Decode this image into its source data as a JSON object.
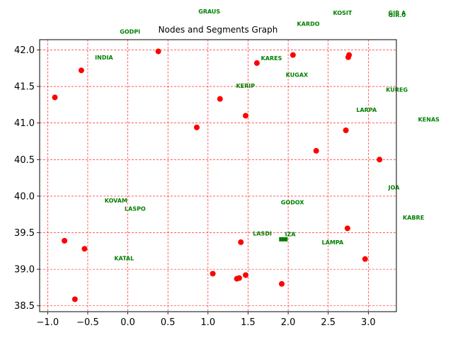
{
  "chart_data": {
    "type": "scatter",
    "title": "Nodes and Segments Graph",
    "xlabel": "",
    "ylabel": "",
    "xlim": [
      -1.1,
      3.35
    ],
    "ylim": [
      38.42,
      42.14
    ],
    "xticks": [
      -1.0,
      -0.5,
      0.0,
      0.5,
      1.0,
      1.5,
      2.0,
      2.5,
      3.0
    ],
    "yticks": [
      38.5,
      39.0,
      39.5,
      40.0,
      40.5,
      41.0,
      41.5,
      42.0
    ],
    "xtick_labels": [
      "−1.0",
      "−0.5",
      "0.0",
      "0.5",
      "1.0",
      "1.5",
      "2.0",
      "2.5",
      "3.0"
    ],
    "ytick_labels": [
      "38.5",
      "39.0",
      "39.5",
      "40.0",
      "40.5",
      "41.0",
      "41.5",
      "42.0"
    ],
    "grid": true,
    "colors": {
      "points": "#ff0000",
      "labels": "#008000",
      "grid": "#ff0000",
      "spine": "#000000",
      "marker": "#008000"
    },
    "points": [
      {
        "x": 0.38,
        "y": 41.98
      },
      {
        "x": 2.06,
        "y": 41.93
      },
      {
        "x": 2.76,
        "y": 41.93
      },
      {
        "x": 2.75,
        "y": 41.9
      },
      {
        "x": -0.58,
        "y": 41.72
      },
      {
        "x": 1.61,
        "y": 41.82
      },
      {
        "x": -0.91,
        "y": 41.35
      },
      {
        "x": 1.15,
        "y": 41.33
      },
      {
        "x": 1.47,
        "y": 41.1
      },
      {
        "x": 0.86,
        "y": 40.94
      },
      {
        "x": 2.72,
        "y": 40.9
      },
      {
        "x": 2.35,
        "y": 40.62
      },
      {
        "x": 3.14,
        "y": 40.5
      },
      {
        "x": 2.74,
        "y": 39.56
      },
      {
        "x": -0.79,
        "y": 39.39
      },
      {
        "x": 1.41,
        "y": 39.37
      },
      {
        "x": -0.54,
        "y": 39.28
      },
      {
        "x": 2.96,
        "y": 39.14
      },
      {
        "x": 1.06,
        "y": 38.94
      },
      {
        "x": 1.47,
        "y": 38.92
      },
      {
        "x": 1.36,
        "y": 38.87
      },
      {
        "x": 1.39,
        "y": 38.88
      },
      {
        "x": 1.92,
        "y": 38.8
      },
      {
        "x": -0.66,
        "y": 38.59
      }
    ],
    "labels": [
      {
        "text": "GRAUS",
        "x": 0.88,
        "y": 42.5
      },
      {
        "text": "KOSIT",
        "x": 2.56,
        "y": 42.48
      },
      {
        "text": "GIR A",
        "x": 3.25,
        "y": 42.48
      },
      {
        "text": "GIR.0",
        "x": 3.25,
        "y": 42.45
      },
      {
        "text": "KARDO",
        "x": 2.11,
        "y": 42.33
      },
      {
        "text": "GODPI",
        "x": -0.1,
        "y": 42.22
      },
      {
        "text": "INDIA",
        "x": -0.41,
        "y": 41.87
      },
      {
        "text": "KARES",
        "x": 1.66,
        "y": 41.86
      },
      {
        "text": "KUGAX",
        "x": 1.97,
        "y": 41.63
      },
      {
        "text": "KERIP",
        "x": 1.35,
        "y": 41.48
      },
      {
        "text": "KUREG",
        "x": 3.22,
        "y": 41.43
      },
      {
        "text": "LARPA",
        "x": 2.85,
        "y": 41.15
      },
      {
        "text": "KENAS",
        "x": 3.62,
        "y": 41.02
      },
      {
        "text": "JOA",
        "x": 3.25,
        "y": 40.09
      },
      {
        "text": "KOVAM",
        "x": -0.29,
        "y": 39.91
      },
      {
        "text": "GODOX",
        "x": 1.91,
        "y": 39.89
      },
      {
        "text": "LASPO",
        "x": -0.04,
        "y": 39.8
      },
      {
        "text": "KABRE",
        "x": 3.43,
        "y": 39.68
      },
      {
        "text": "LASDI",
        "x": 1.56,
        "y": 39.46
      },
      {
        "text": "IZA",
        "x": 1.96,
        "y": 39.45
      },
      {
        "text": "LAMPA",
        "x": 2.42,
        "y": 39.34
      },
      {
        "text": "KATAL",
        "x": -0.17,
        "y": 39.12
      }
    ],
    "markers": [
      {
        "x": 1.94,
        "y": 39.41
      }
    ]
  }
}
